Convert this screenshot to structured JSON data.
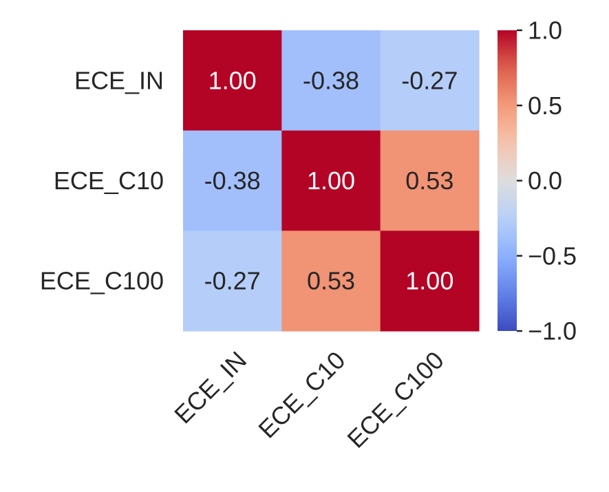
{
  "chart_data": {
    "type": "heatmap",
    "title": "",
    "xlabel": "",
    "ylabel": "",
    "x_categories": [
      "ECE_IN",
      "ECE_C10",
      "ECE_C100"
    ],
    "y_categories": [
      "ECE_IN",
      "ECE_C10",
      "ECE_C100"
    ],
    "values": [
      [
        1.0,
        -0.38,
        -0.27
      ],
      [
        -0.38,
        1.0,
        0.53
      ],
      [
        -0.27,
        0.53,
        1.0
      ]
    ],
    "cell_labels": [
      [
        "1.00",
        "-0.38",
        "-0.27"
      ],
      [
        "-0.38",
        "1.00",
        "0.53"
      ],
      [
        "-0.27",
        "0.53",
        "1.00"
      ]
    ],
    "colormap": "coolwarm",
    "vmin": -1.0,
    "vmax": 1.0,
    "colorbar": {
      "ticks": [
        1.0,
        0.5,
        0.0,
        -0.5,
        -1.0
      ],
      "tick_labels": [
        "1.0",
        "0.5",
        "0.0",
        "−0.5",
        "−1.0"
      ]
    },
    "x_tick_rotation_deg": 45,
    "grid": false,
    "legend": "colorbar-right"
  }
}
